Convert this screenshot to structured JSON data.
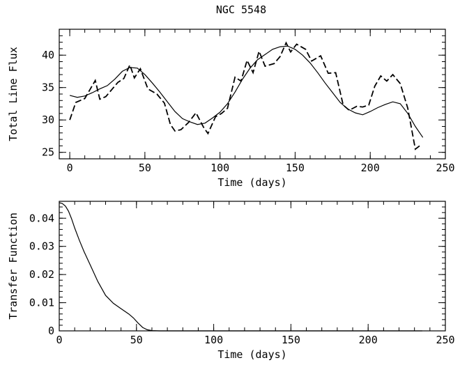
{
  "chart_data": [
    {
      "type": "line",
      "title": "NGC 5548",
      "xlabel": "Time (days)",
      "ylabel": "Total Line Flux",
      "xlim": [
        -7,
        250
      ],
      "ylim": [
        24,
        44
      ],
      "xticks": [
        0,
        50,
        100,
        150,
        200,
        250
      ],
      "yticks": [
        25,
        30,
        35,
        40
      ],
      "xticklabels": [
        "0",
        "50",
        "100",
        "150",
        "200",
        "250"
      ],
      "yticklabels": [
        "25",
        "30",
        "35",
        "40"
      ],
      "grid": false,
      "series": [
        {
          "style": "dashed",
          "x": [
            0,
            4,
            10,
            17,
            20,
            24,
            32,
            36,
            40,
            43,
            47,
            52,
            58,
            63,
            67,
            70,
            74,
            79,
            84,
            89,
            92,
            97,
            101,
            105,
            110,
            114,
            118,
            122,
            126,
            130,
            136,
            140,
            144,
            147,
            151,
            157,
            161,
            167,
            172,
            177,
            182,
            186,
            191,
            195,
            199,
            203,
            207,
            211,
            215,
            220,
            225,
            230,
            234
          ],
          "values": [
            30.0,
            32.7,
            33.3,
            36.1,
            33.2,
            33.6,
            35.8,
            36.4,
            38.5,
            36.5,
            37.9,
            34.8,
            34.0,
            32.6,
            29.3,
            28.3,
            28.5,
            29.6,
            31.1,
            28.9,
            27.9,
            30.5,
            31.0,
            31.8,
            36.6,
            36.0,
            39.2,
            37.3,
            40.6,
            38.3,
            38.7,
            39.8,
            41.9,
            40.5,
            41.7,
            40.9,
            39.1,
            39.9,
            37.2,
            37.3,
            32.3,
            31.5,
            32.1,
            32.0,
            32.3,
            35.2,
            36.8,
            36.0,
            37.0,
            35.6,
            31.8,
            25.5,
            26.2
          ]
        },
        {
          "style": "solid",
          "x": [
            0,
            5,
            10,
            15,
            20,
            25,
            30,
            35,
            40,
            45,
            50,
            55,
            60,
            65,
            70,
            75,
            80,
            85,
            90,
            95,
            100,
            105,
            110,
            115,
            120,
            125,
            130,
            135,
            140,
            145,
            150,
            155,
            160,
            165,
            170,
            175,
            180,
            185,
            190,
            195,
            200,
            205,
            210,
            215,
            220,
            225,
            230,
            235
          ],
          "values": [
            33.8,
            33.5,
            33.7,
            34.2,
            34.8,
            35.3,
            36.3,
            37.5,
            38.1,
            38.0,
            37.0,
            35.7,
            34.3,
            32.8,
            31.3,
            30.2,
            29.7,
            29.3,
            29.5,
            30.3,
            31.2,
            32.5,
            34.3,
            36.3,
            38.0,
            39.3,
            40.1,
            40.9,
            41.3,
            41.4,
            40.9,
            40.0,
            38.8,
            37.3,
            35.7,
            34.2,
            32.7,
            31.7,
            31.1,
            30.8,
            31.3,
            31.9,
            32.4,
            32.8,
            32.5,
            31.0,
            29.0,
            27.3
          ]
        }
      ]
    },
    {
      "type": "line",
      "title": "",
      "xlabel": "Time (days)",
      "ylabel": "Transfer Function",
      "xlim": [
        0,
        250
      ],
      "ylim": [
        0,
        0.046
      ],
      "xticks": [
        0,
        50,
        100,
        150,
        200,
        250
      ],
      "yticks": [
        0,
        0.01,
        0.02,
        0.03,
        0.04
      ],
      "xticklabels": [
        "0",
        "50",
        "100",
        "150",
        "200",
        "250"
      ],
      "yticklabels": [
        "0",
        "0.01",
        "0.02",
        "0.03",
        "0.04"
      ],
      "grid": false,
      "series": [
        {
          "style": "solid",
          "x": [
            0,
            2,
            4,
            6,
            8,
            10,
            13,
            16,
            20,
            25,
            30,
            35,
            40,
            45,
            48,
            51,
            54,
            57,
            60,
            65,
            80,
            120,
            160,
            200,
            235
          ],
          "values": [
            0.0455,
            0.0452,
            0.0443,
            0.0425,
            0.0398,
            0.0365,
            0.0322,
            0.0282,
            0.0235,
            0.0175,
            0.0126,
            0.0098,
            0.0079,
            0.006,
            0.0046,
            0.0028,
            0.0012,
            0.0004,
            0.0001,
            0.0,
            0.0,
            0.0,
            0.0,
            0.0,
            0.0
          ]
        }
      ]
    }
  ]
}
